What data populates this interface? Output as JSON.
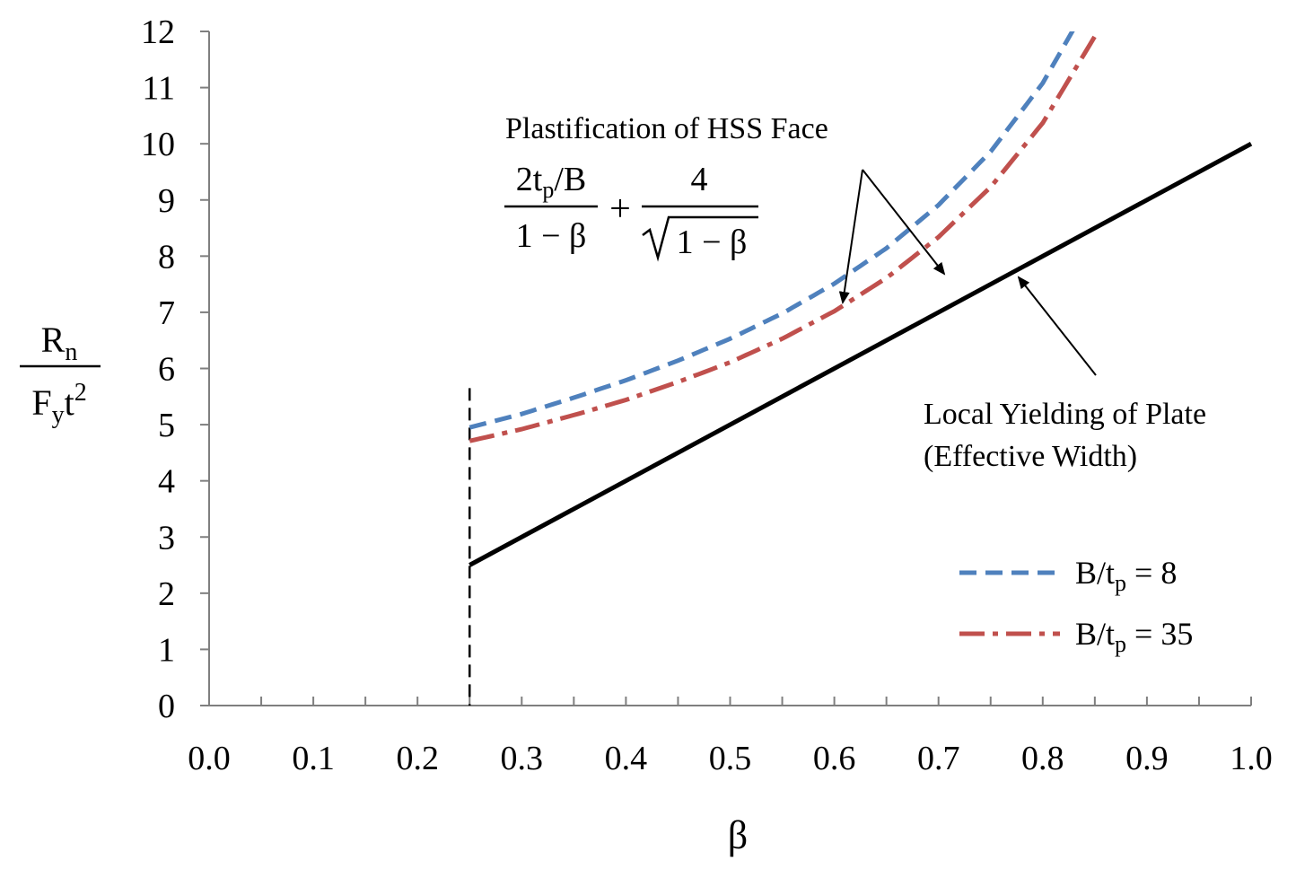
{
  "chart_data": {
    "type": "line",
    "xlabel": "β",
    "ylabel": {
      "numerator": "R",
      "numerator_sub": "n",
      "denominator_a": "F",
      "denominator_sub": "y",
      "denominator_b": "t",
      "denominator_sup": "2"
    },
    "xlim": [
      0,
      1.0
    ],
    "ylim": [
      0,
      12
    ],
    "x_ticks": [
      "0.0",
      "0.1",
      "0.2",
      "0.3",
      "0.4",
      "0.5",
      "0.6",
      "0.7",
      "0.8",
      "0.9",
      "1.0"
    ],
    "y_ticks": [
      "0",
      "1",
      "2",
      "3",
      "4",
      "5",
      "6",
      "7",
      "8",
      "9",
      "10",
      "11",
      "12"
    ],
    "grid": false,
    "legend_position": "bottom-right",
    "beta_min_line": 0.25,
    "series": [
      {
        "name": "B/t_p = 8",
        "legend_label": "B/t",
        "legend_sub": "p",
        "legend_eq": " = 8",
        "color": "#4F81BD",
        "style": "dashed",
        "x": [
          0.25,
          0.3,
          0.35,
          0.4,
          0.45,
          0.5,
          0.55,
          0.6,
          0.65,
          0.7,
          0.75,
          0.8,
          0.85
        ],
        "y": [
          4.95,
          5.19,
          5.48,
          5.79,
          6.14,
          6.53,
          6.98,
          7.51,
          8.14,
          8.91,
          9.86,
          11.08,
          12.7
        ]
      },
      {
        "name": "B/t_p = 35",
        "legend_label": "B/t",
        "legend_sub": "p",
        "legend_eq": " = 35",
        "color": "#C0504D",
        "style": "dashdot",
        "x": [
          0.25,
          0.3,
          0.35,
          0.4,
          0.45,
          0.5,
          0.55,
          0.6,
          0.65,
          0.7,
          0.75,
          0.8,
          0.85,
          0.88
        ],
        "y": [
          4.71,
          4.92,
          5.17,
          5.44,
          5.76,
          6.11,
          6.53,
          7.02,
          7.61,
          8.34,
          9.23,
          10.37,
          11.91,
          13.23
        ]
      },
      {
        "name": "Local Yielding of Plate",
        "color": "#000000",
        "style": "solid",
        "x": [
          0.25,
          1.0
        ],
        "y": [
          2.5,
          10.0
        ]
      }
    ],
    "annotations": {
      "plastification_title": "Plastification of HSS Face",
      "formula_num1_a": "2t",
      "formula_num1_sub": "p",
      "formula_num1_b": "/B",
      "formula_den1": "1 − β",
      "formula_plus": "+",
      "formula_num2": "4",
      "formula_den2": "1 − β",
      "yield_line1": "Local Yielding  of Plate",
      "yield_line2": "(Effective Width)"
    }
  }
}
